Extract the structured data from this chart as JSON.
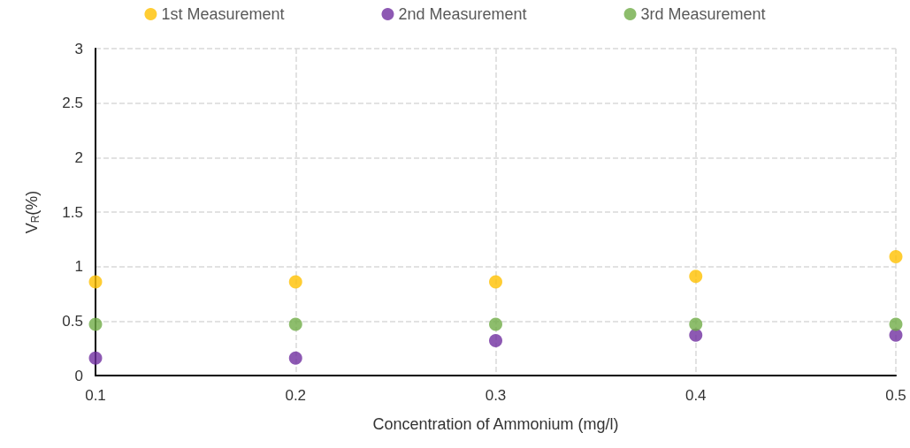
{
  "chart_data": {
    "type": "scatter",
    "xlabel": "Concentration of Ammonium (mg/l)",
    "ylabel": "V$_{R}$(%)",
    "x": [
      0.1,
      0.2,
      0.3,
      0.4,
      0.5
    ],
    "series": [
      {
        "name": "1st Measurement",
        "color": "#ffc000",
        "values": [
          0.86,
          0.86,
          0.86,
          0.91,
          1.09
        ]
      },
      {
        "name": "2nd Measurement",
        "color": "#7030a0",
        "values": [
          0.16,
          0.16,
          0.32,
          0.37,
          0.37
        ]
      },
      {
        "name": "3rd Measurement",
        "color": "#70ad47",
        "values": [
          0.47,
          0.47,
          0.47,
          0.47,
          0.47
        ]
      }
    ],
    "xlim": [
      0.1,
      0.5
    ],
    "xticks": [
      0.1,
      0.2,
      0.3,
      0.4,
      0.5
    ],
    "ylim": [
      0,
      3
    ],
    "yticks": [
      0,
      0.5,
      1,
      1.5,
      2,
      2.5,
      3
    ],
    "grid": true,
    "legend": "top",
    "marker": "circle"
  }
}
